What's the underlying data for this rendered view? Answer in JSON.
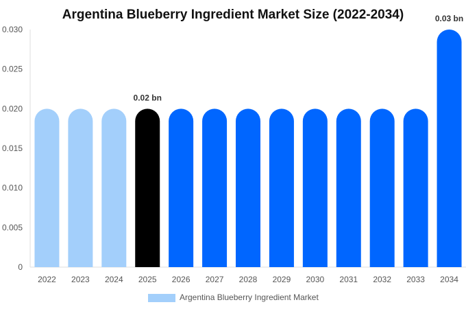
{
  "chart_data": {
    "type": "bar",
    "title": "Argentina Blueberry Ingredient Market Size (2022-2034)",
    "xlabel": "",
    "ylabel": "",
    "categories": [
      "2022",
      "2023",
      "2024",
      "2025",
      "2026",
      "2027",
      "2028",
      "2029",
      "2030",
      "2031",
      "2032",
      "2033",
      "2034"
    ],
    "series": [
      {
        "name": "Argentina Blueberry Ingredient Market",
        "values": [
          0.02,
          0.02,
          0.02,
          0.02,
          0.02,
          0.02,
          0.02,
          0.02,
          0.02,
          0.02,
          0.02,
          0.02,
          0.03
        ]
      }
    ],
    "ylim": [
      0,
      0.03
    ],
    "yticks": [
      "0",
      "0.005",
      "0.010",
      "0.015",
      "0.020",
      "0.025",
      "0.030"
    ],
    "data_labels": [
      {
        "category": "2025",
        "text": "0.02 bn"
      },
      {
        "category": "2034",
        "text": "0.03 bn"
      }
    ],
    "bar_colors": {
      "historical": "#a3cffb",
      "base_year": "#000000",
      "forecast": "#0066ff"
    },
    "historical_categories": [
      "2022",
      "2023",
      "2024"
    ],
    "base_category": "2025",
    "legend": {
      "position": "bottom",
      "color": "#a3cffb"
    },
    "grid": false
  }
}
